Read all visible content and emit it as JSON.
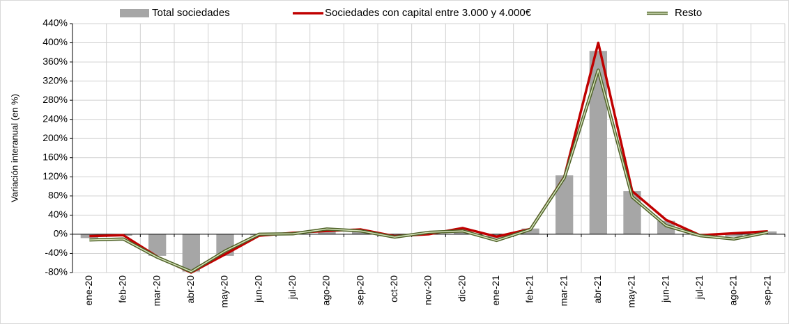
{
  "chart_data": {
    "type": "bar-line",
    "y_label": "Variación interanual (en %)",
    "categories": [
      "ene-20",
      "feb-20",
      "mar-20",
      "abr-20",
      "may-20",
      "jun-20",
      "jul-20",
      "ago-20",
      "sep-20",
      "oct-20",
      "nov-20",
      "dic-20",
      "ene-21",
      "feb-21",
      "mar-21",
      "abr-21",
      "may-21",
      "jun-21",
      "jul-21",
      "ago-21",
      "sep-21"
    ],
    "series": [
      {
        "name": "Total sociedades",
        "kind": "bar",
        "color": "#a6a6a6",
        "values": [
          -8,
          -3,
          -45,
          -78,
          -45,
          -2,
          3,
          8,
          8,
          -3,
          3,
          10,
          -8,
          12,
          123,
          383,
          90,
          28,
          -3,
          -5,
          6
        ]
      },
      {
        "name": "Sociedades con capital entre 3.000 y 4.000€",
        "kind": "line",
        "color": "#c00000",
        "values": [
          -4,
          -2,
          -47,
          -80,
          -42,
          -3,
          3,
          7,
          10,
          -4,
          0,
          13,
          -5,
          11,
          120,
          400,
          90,
          30,
          -2,
          2,
          6
        ]
      },
      {
        "name": "Resto",
        "kind": "double-line",
        "color": "#4f6228",
        "values": [
          -12,
          -10,
          -48,
          -78,
          -35,
          0,
          1,
          11,
          7,
          -6,
          4,
          7,
          -13,
          10,
          118,
          343,
          78,
          18,
          -3,
          -10,
          4
        ]
      }
    ],
    "ylim": [
      -80,
      440
    ],
    "yticks": [
      {
        "value": -80,
        "label": "-80%"
      },
      {
        "value": -40,
        "label": "-40%"
      },
      {
        "value": 0,
        "label": "0%"
      },
      {
        "value": 40,
        "label": "40%"
      },
      {
        "value": 80,
        "label": "80%"
      },
      {
        "value": 120,
        "label": "120%"
      },
      {
        "value": 160,
        "label": "160%"
      },
      {
        "value": 200,
        "label": "200%"
      },
      {
        "value": 240,
        "label": "240%"
      },
      {
        "value": 280,
        "label": "280%"
      },
      {
        "value": 320,
        "label": "320%"
      },
      {
        "value": 360,
        "label": "360%"
      },
      {
        "value": 400,
        "label": "400%"
      },
      {
        "value": 440,
        "label": "440%"
      }
    ],
    "grid": true,
    "legend": "top"
  }
}
